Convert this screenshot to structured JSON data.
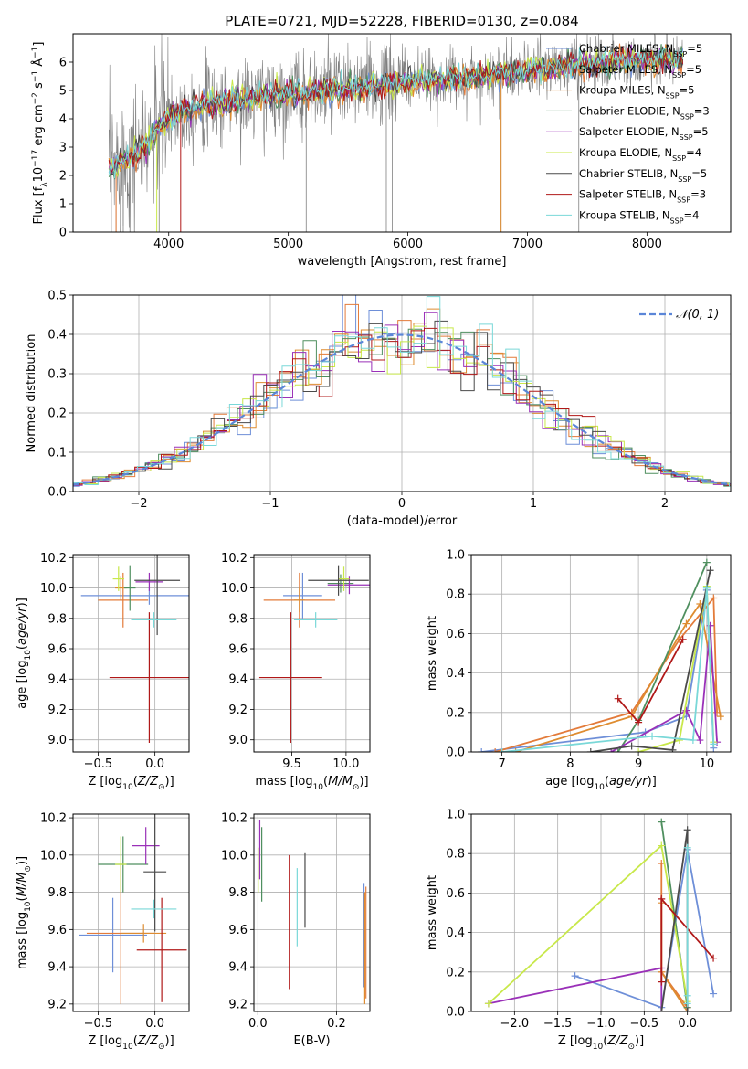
{
  "figure": {
    "title": "PLATE=0721, MJD=52228, FIBERID=0130, z=0.084"
  },
  "series": [
    {
      "name": "Chabrier MILES, N_SSP=5",
      "name_prefix": "Chabrier MILES, N",
      "name_sub": "SSP",
      "name_suffix": "=5",
      "color": "#6e8fd8"
    },
    {
      "name": "Salpeter MILES, N_SSP=5",
      "name_prefix": "Salpeter MILES, N",
      "name_sub": "SSP",
      "name_suffix": "=5",
      "color": "#e37b3a"
    },
    {
      "name": "Kroupa MILES, N_SSP=5",
      "name_prefix": "Kroupa MILES, N",
      "name_sub": "SSP",
      "name_suffix": "=5",
      "color": "#de8c30"
    },
    {
      "name": "Chabrier ELODIE, N_SSP=3",
      "name_prefix": "Chabrier ELODIE, N",
      "name_sub": "SSP",
      "name_suffix": "=3",
      "color": "#4f8f5f"
    },
    {
      "name": "Salpeter ELODIE, N_SSP=5",
      "name_prefix": "Salpeter ELODIE, N",
      "name_sub": "SSP",
      "name_suffix": "=5",
      "color": "#9a30b8"
    },
    {
      "name": "Kroupa ELODIE, N_SSP=4",
      "name_prefix": "Kroupa ELODIE, N",
      "name_sub": "SSP",
      "name_suffix": "=4",
      "color": "#c8e84a"
    },
    {
      "name": "Chabrier STELIB, N_SSP=5",
      "name_prefix": "Chabrier STELIB, N",
      "name_sub": "SSP",
      "name_suffix": "=5",
      "color": "#4a4a4a"
    },
    {
      "name": "Salpeter STELIB, N_SSP=3",
      "name_prefix": "Salpeter STELIB, N",
      "name_sub": "SSP",
      "name_suffix": "=3",
      "color": "#b01818"
    },
    {
      "name": "Kroupa STELIB, N_SSP=4",
      "name_prefix": "Kroupa STELIB, N",
      "name_sub": "SSP",
      "name_suffix": "=4",
      "color": "#7ad8d8"
    }
  ],
  "chart_data": [
    {
      "id": "spectrum",
      "type": "line",
      "xlabel": "wavelength [Angstrom, rest frame]",
      "ylabel": "Flux [f_λ 10^-17 erg cm^-2 s^-1 Å^-1]",
      "xlim": [
        3200,
        8700
      ],
      "ylim": [
        0,
        7
      ],
      "xticks": [
        4000,
        5000,
        6000,
        7000,
        8000
      ],
      "yticks": [
        0,
        1,
        2,
        3,
        4,
        5,
        6
      ],
      "grid": false,
      "legend": "right",
      "data_color": "#808080",
      "continuum": {
        "x": [
          3500,
          3600,
          3700,
          3800,
          3900,
          4000,
          4100,
          4300,
          4500,
          4800,
          5000,
          5300,
          5600,
          6000,
          6300,
          6600,
          7000,
          7400,
          7700,
          8000,
          8300
        ],
        "y": [
          2.2,
          2.5,
          2.7,
          3.0,
          3.6,
          4.0,
          4.3,
          4.5,
          4.6,
          4.8,
          4.9,
          5.0,
          5.1,
          5.3,
          5.4,
          5.5,
          5.7,
          5.9,
          6.0,
          6.05,
          6.1
        ]
      }
    },
    {
      "id": "residuals",
      "type": "histogram",
      "xlabel": "(data-model)/error",
      "ylabel": "Normed distribution",
      "xlim": [
        -2.5,
        2.5
      ],
      "ylim": [
        0,
        0.5
      ],
      "xticks": [
        -2,
        -1,
        0,
        1,
        2
      ],
      "yticks": [
        0.0,
        0.1,
        0.2,
        0.3,
        0.4,
        0.5
      ],
      "grid": true,
      "legend": "top-right",
      "reference": {
        "name": "𝒩(0, 1)",
        "mean": 0,
        "sigma": 1,
        "color": "#5b86d8"
      },
      "bin_width": 0.1
    },
    {
      "id": "age_vs_Z",
      "type": "errorbar",
      "xlabel": "Z [log10(Z/Z⊙)]",
      "ylabel": "age [log10(age/yr)]",
      "xlim": [
        -0.72,
        0.3
      ],
      "ylim": [
        8.92,
        10.22
      ],
      "xticks": [
        -0.5,
        0.0
      ],
      "yticks": [
        9.0,
        9.2,
        9.4,
        9.6,
        9.8,
        10.0,
        10.2
      ],
      "grid": true,
      "points": [
        {
          "series": 0,
          "x": -0.05,
          "y": 9.95,
          "xerr": 0.6,
          "yerr": 0.06
        },
        {
          "series": 1,
          "x": -0.28,
          "y": 9.92,
          "xerr": 0.22,
          "yerr": 0.18
        },
        {
          "series": 2,
          "x": -0.3,
          "y": 10.0,
          "xerr": 0.05,
          "yerr": 0.08
        },
        {
          "series": 3,
          "x": -0.22,
          "y": 10.0,
          "xerr": 0.05,
          "yerr": 0.15
        },
        {
          "series": 4,
          "x": -0.05,
          "y": 10.04,
          "xerr": 0.12,
          "yerr": 0.06
        },
        {
          "series": 5,
          "x": -0.32,
          "y": 10.06,
          "xerr": 0.05,
          "yerr": 0.08
        },
        {
          "series": 6,
          "x": 0.02,
          "y": 10.05,
          "xerr": 0.2,
          "yerr": 0.36
        },
        {
          "series": 7,
          "x": -0.05,
          "y": 9.41,
          "xerr": 0.35,
          "yerr": 0.43
        },
        {
          "series": 8,
          "x": -0.01,
          "y": 9.79,
          "xerr": 0.2,
          "yerr": 0.05
        }
      ]
    },
    {
      "id": "age_vs_mass",
      "type": "errorbar",
      "xlabel": "mass [log10(M/M⊙)]",
      "ylabel": "",
      "xlim": [
        9.15,
        10.22
      ],
      "ylim": [
        8.92,
        10.22
      ],
      "xticks": [
        9.5,
        10.0
      ],
      "yticks": [
        9.0,
        9.2,
        9.4,
        9.6,
        9.8,
        10.0,
        10.2
      ],
      "grid": true,
      "points": [
        {
          "series": 0,
          "x": 9.6,
          "y": 9.95,
          "xerr": 0.18,
          "yerr": 0.15
        },
        {
          "series": 1,
          "x": 9.57,
          "y": 9.92,
          "xerr": 0.33,
          "yerr": 0.18
        },
        {
          "series": 2,
          "x": 9.57,
          "y": 9.92,
          "xerr": 0.05,
          "yerr": 0.08
        },
        {
          "series": 3,
          "x": 9.95,
          "y": 10.03,
          "xerr": 0.12,
          "yerr": 0.06
        },
        {
          "series": 4,
          "x": 10.03,
          "y": 10.02,
          "xerr": 0.2,
          "yerr": 0.06
        },
        {
          "series": 5,
          "x": 9.98,
          "y": 10.06,
          "xerr": 0.05,
          "yerr": 0.08
        },
        {
          "series": 6,
          "x": 9.93,
          "y": 10.05,
          "xerr": 0.28,
          "yerr": 0.1
        },
        {
          "series": 7,
          "x": 9.49,
          "y": 9.41,
          "xerr": 0.29,
          "yerr": 0.43
        },
        {
          "series": 8,
          "x": 9.72,
          "y": 9.79,
          "xerr": 0.2,
          "yerr": 0.05
        }
      ]
    },
    {
      "id": "weight_vs_age",
      "type": "line",
      "xlabel": "age [log10(age/yr)]",
      "ylabel": "mass weight",
      "xlim": [
        6.55,
        10.35
      ],
      "ylim": [
        0,
        1
      ],
      "xticks": [
        7,
        8,
        9,
        10
      ],
      "yticks": [
        0.0,
        0.2,
        0.4,
        0.6,
        0.8,
        1.0
      ],
      "grid": true,
      "lines": [
        {
          "series": 0,
          "x": [
            6.7,
            9.1,
            9.7,
            10.0,
            10.1
          ],
          "y": [
            0.0,
            0.1,
            0.18,
            0.82,
            0.02
          ]
        },
        {
          "series": 1,
          "x": [
            6.9,
            8.9,
            9.6,
            10.1,
            10.15
          ],
          "y": [
            0.0,
            0.2,
            0.57,
            0.78,
            0.2
          ]
        },
        {
          "series": 2,
          "x": [
            7.2,
            8.9,
            9.7,
            9.9,
            10.2
          ],
          "y": [
            0.0,
            0.18,
            0.65,
            0.75,
            0.18
          ]
        },
        {
          "series": 3,
          "x": [
            8.7,
            9.0,
            10.0
          ],
          "y": [
            0.0,
            0.16,
            0.96
          ]
        },
        {
          "series": 4,
          "x": [
            8.6,
            9.7,
            9.9,
            10.05,
            10.15
          ],
          "y": [
            0.0,
            0.21,
            0.06,
            0.64,
            0.05
          ]
        },
        {
          "series": 5,
          "x": [
            9.0,
            9.6,
            10.0,
            10.1
          ],
          "y": [
            0.0,
            0.06,
            0.84,
            0.05
          ]
        },
        {
          "series": 6,
          "x": [
            8.3,
            8.9,
            9.5,
            10.05
          ],
          "y": [
            0.0,
            0.03,
            0.01,
            0.92
          ]
        },
        {
          "series": 7,
          "x": [
            8.7,
            9.0,
            9.65
          ],
          "y": [
            0.27,
            0.15,
            0.57
          ]
        },
        {
          "series": 8,
          "x": [
            7.0,
            9.2,
            9.8,
            10.0,
            10.1
          ],
          "y": [
            0.0,
            0.08,
            0.06,
            0.83,
            0.04
          ]
        }
      ]
    },
    {
      "id": "mass_vs_Z",
      "type": "errorbar",
      "xlabel": "Z [log10(Z/Z⊙)]",
      "ylabel": "mass [log10(M/M⊙)]",
      "xlim": [
        -0.72,
        0.3
      ],
      "ylim": [
        9.16,
        10.22
      ],
      "xticks": [
        -0.5,
        0.0
      ],
      "yticks": [
        9.2,
        9.4,
        9.6,
        9.8,
        10.0,
        10.2
      ],
      "grid": true,
      "points": [
        {
          "series": 0,
          "x": -0.37,
          "y": 9.57,
          "xerr": 0.3,
          "yerr": 0.2
        },
        {
          "series": 1,
          "x": -0.3,
          "y": 9.58,
          "xerr": 0.3,
          "yerr": 0.38
        },
        {
          "series": 2,
          "x": -0.1,
          "y": 9.58,
          "xerr": 0.2,
          "yerr": 0.05
        },
        {
          "series": 3,
          "x": -0.28,
          "y": 9.95,
          "xerr": 0.22,
          "yerr": 0.15
        },
        {
          "series": 4,
          "x": -0.08,
          "y": 10.05,
          "xerr": 0.12,
          "yerr": 0.1
        },
        {
          "series": 5,
          "x": -0.3,
          "y": 9.95,
          "xerr": 0.05,
          "yerr": 0.15
        },
        {
          "series": 6,
          "x": 0.0,
          "y": 9.91,
          "xerr": 0.1,
          "yerr": 0.32
        },
        {
          "series": 7,
          "x": 0.06,
          "y": 9.49,
          "xerr": 0.22,
          "yerr": 0.28
        },
        {
          "series": 8,
          "x": -0.01,
          "y": 9.71,
          "xerr": 0.2,
          "yerr": 0.05
        }
      ]
    },
    {
      "id": "mass_vs_ebv",
      "type": "errorbar",
      "xlabel": "E(B-V)",
      "ylabel": "",
      "xlim": [
        -0.01,
        0.285
      ],
      "ylim": [
        9.16,
        10.22
      ],
      "xticks": [
        0.0,
        0.2
      ],
      "yticks": [
        9.2,
        9.4,
        9.6,
        9.8,
        10.0,
        10.2
      ],
      "grid": true,
      "points": [
        {
          "series": 0,
          "x": 0.27,
          "y": 9.57,
          "xerr": 0,
          "yerr": 0.28
        },
        {
          "series": 1,
          "x": 0.275,
          "y": 9.53,
          "xerr": 0,
          "yerr": 0.3
        },
        {
          "series": 2,
          "x": 0.272,
          "y": 9.5,
          "xerr": 0,
          "yerr": 0.3
        },
        {
          "series": 3,
          "x": 0.01,
          "y": 9.95,
          "xerr": 0,
          "yerr": 0.2
        },
        {
          "series": 4,
          "x": 0.005,
          "y": 10.03,
          "xerr": 0,
          "yerr": 0.16
        },
        {
          "series": 5,
          "x": 0.001,
          "y": 9.92,
          "xerr": 0,
          "yerr": 0.12
        },
        {
          "series": 6,
          "x": 0.12,
          "y": 9.81,
          "xerr": 0,
          "yerr": 0.2
        },
        {
          "series": 7,
          "x": 0.08,
          "y": 9.64,
          "xerr": 0,
          "yerr": 0.36
        },
        {
          "series": 8,
          "x": 0.1,
          "y": 9.72,
          "xerr": 0,
          "yerr": 0.21
        }
      ]
    },
    {
      "id": "weight_vs_Z",
      "type": "line",
      "xlabel": "Z [log10(Z/Z⊙)]",
      "ylabel": "mass weight",
      "xlim": [
        -2.5,
        0.5
      ],
      "ylim": [
        0,
        1
      ],
      "xticks": [
        -2.0,
        -1.5,
        -1.0,
        -0.5,
        0.0
      ],
      "yticks": [
        0.0,
        0.2,
        0.4,
        0.6,
        0.8,
        1.0
      ],
      "grid": true,
      "lines": [
        {
          "series": 0,
          "x": [
            -1.3,
            -0.3,
            0.0,
            0.3
          ],
          "y": [
            0.18,
            0.02,
            0.82,
            0.09
          ]
        },
        {
          "series": 1,
          "x": [
            -0.3,
            -0.3,
            0.0
          ],
          "y": [
            0.75,
            0.2,
            0.02
          ]
        },
        {
          "series": 2,
          "x": [
            -0.3,
            -0.3,
            0.0
          ],
          "y": [
            0.55,
            0.2,
            0.0
          ]
        },
        {
          "series": 3,
          "x": [
            -0.3,
            0.0
          ],
          "y": [
            0.96,
            0.02
          ]
        },
        {
          "series": 4,
          "x": [
            -2.3,
            -0.3,
            -0.3,
            0.0
          ],
          "y": [
            0.04,
            0.22,
            0.0,
            0.0
          ]
        },
        {
          "series": 5,
          "x": [
            -2.3,
            -0.3,
            0.0
          ],
          "y": [
            0.04,
            0.84,
            0.05
          ]
        },
        {
          "series": 6,
          "x": [
            -0.3,
            0.0,
            0.0
          ],
          "y": [
            0.0,
            0.92,
            0.0
          ]
        },
        {
          "series": 7,
          "x": [
            0.3,
            -0.3,
            -0.3
          ],
          "y": [
            0.27,
            0.57,
            0.15
          ]
        },
        {
          "series": 8,
          "x": [
            0.0,
            0.0,
            0.0
          ],
          "y": [
            0.83,
            0.04,
            0.08
          ]
        }
      ]
    }
  ]
}
